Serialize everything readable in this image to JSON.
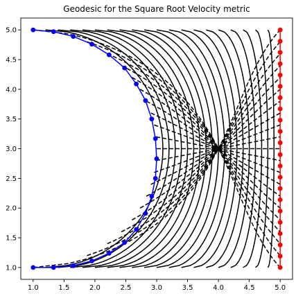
{
  "chart_data": {
    "type": "line",
    "title": "Geodesic for the Square Root Velocity metric",
    "xlabel": "",
    "ylabel": "",
    "xlim": [
      0.8,
      5.2
    ],
    "ylim": [
      0.8,
      5.2
    ],
    "xticks": [
      1.0,
      1.5,
      2.0,
      2.5,
      3.0,
      3.5,
      4.0,
      4.5,
      5.0
    ],
    "xtick_labels": [
      "1.0",
      "1.5",
      "2.0",
      "2.5",
      "3.0",
      "3.5",
      "4.0",
      "4.5",
      "5.0"
    ],
    "yticks": [
      1.0,
      1.5,
      2.0,
      2.5,
      3.0,
      3.5,
      4.0,
      4.5,
      5.0
    ],
    "ytick_labels": [
      "1.0",
      "1.5",
      "2.0",
      "2.5",
      "3.0",
      "3.5",
      "4.0",
      "4.5",
      "5.0"
    ],
    "grid": false,
    "series": [
      {
        "role": "start-curve",
        "color": "#0000ff",
        "style": "solid-with-markers",
        "x": [
          1.0,
          1.33,
          1.65,
          1.95,
          2.23,
          2.48,
          2.67,
          2.82,
          2.92,
          2.98,
          3.0,
          2.98,
          2.92,
          2.82,
          2.67,
          2.48,
          2.23,
          1.95,
          1.65,
          1.33,
          1.0
        ],
        "y": [
          5.0,
          4.97,
          4.89,
          4.76,
          4.58,
          4.36,
          4.09,
          3.81,
          3.5,
          3.17,
          2.83,
          2.5,
          2.2,
          1.91,
          1.64,
          1.42,
          1.24,
          1.11,
          1.03,
          1.0,
          1.0
        ]
      },
      {
        "role": "end-curve",
        "color": "#ff0000",
        "style": "solid-with-markers",
        "x": [
          5.0,
          5.0,
          5.0,
          5.0,
          5.0,
          5.0,
          5.0,
          5.0,
          5.0,
          5.0,
          5.0,
          5.0,
          5.0,
          5.0,
          5.0,
          5.0,
          5.0,
          5.0,
          5.0,
          5.0,
          5.0,
          5.0
        ],
        "y": [
          1.0,
          1.19,
          1.38,
          1.57,
          1.76,
          1.95,
          2.14,
          2.33,
          2.52,
          2.71,
          2.9,
          3.1,
          3.29,
          3.48,
          3.67,
          3.86,
          4.05,
          4.24,
          4.43,
          4.62,
          4.81,
          5.0
        ]
      }
    ],
    "intermediate_curves": {
      "color": "#000000",
      "style": "solid",
      "count": 20,
      "max_x_offset": 2.0,
      "exponent": 0.5
    },
    "connecting_paths": {
      "color": "#000000",
      "style": "dashed",
      "count": 21,
      "end_t": [
        1.0,
        0.95,
        0.9,
        0.85,
        0.8,
        0.75,
        0.7,
        0.65,
        0.6,
        0.55,
        0.5,
        0.45,
        0.4,
        0.35,
        0.3,
        0.25,
        0.2,
        0.15,
        0.1,
        0.05,
        0.0
      ]
    }
  }
}
